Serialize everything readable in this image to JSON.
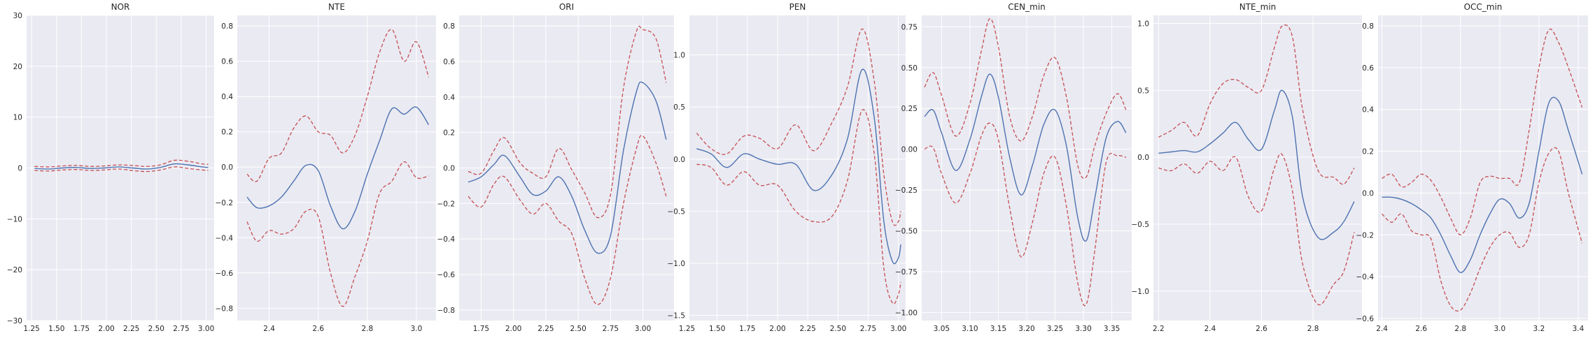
{
  "colors": {
    "mean": "#4c72b0",
    "band": "#c44e52",
    "background": "#eaeaf2",
    "grid": "#ffffff"
  },
  "chart_data": [
    {
      "type": "line",
      "title": "NOR",
      "xlabel": "",
      "ylabel": "",
      "grid": true,
      "xlim": [
        1.2,
        3.08
      ],
      "ylim": [
        -30,
        30
      ],
      "xticks": [
        1.25,
        1.5,
        1.75,
        2.0,
        2.25,
        2.5,
        2.75,
        3.0
      ],
      "xtick_labels": [
        "1.25",
        "1.50",
        "1.75",
        "2.00",
        "2.25",
        "2.50",
        "2.75",
        "3.00"
      ],
      "yticks": [
        -30,
        -20,
        -10,
        0,
        10,
        20,
        30
      ],
      "ytick_labels": [
        "−30",
        "−20",
        "−10",
        "0",
        "10",
        "20",
        "30"
      ],
      "x": [
        1.28,
        1.42,
        1.56,
        1.7,
        1.84,
        1.98,
        2.12,
        2.26,
        2.4,
        2.54,
        2.68,
        2.82,
        2.96,
        3.02
      ],
      "series": [
        {
          "role": "mean",
          "values": [
            -0.1,
            -0.2,
            0.0,
            0.1,
            -0.1,
            0.0,
            0.2,
            0.0,
            -0.2,
            0.1,
            0.8,
            0.6,
            0.2,
            0.1
          ]
        },
        {
          "role": "upper",
          "values": [
            0.3,
            0.2,
            0.4,
            0.5,
            0.3,
            0.4,
            0.6,
            0.5,
            0.3,
            0.6,
            1.5,
            1.3,
            0.8,
            0.7
          ]
        },
        {
          "role": "lower",
          "values": [
            -0.5,
            -0.6,
            -0.4,
            -0.3,
            -0.5,
            -0.4,
            -0.2,
            -0.5,
            -0.7,
            -0.4,
            0.2,
            -0.1,
            -0.4,
            -0.5
          ]
        }
      ]
    },
    {
      "type": "line",
      "title": "NTE",
      "xlabel": "",
      "ylabel": "",
      "grid": true,
      "xlim": [
        2.27,
        3.08
      ],
      "ylim": [
        -0.87,
        0.86
      ],
      "xticks": [
        2.4,
        2.6,
        2.8,
        3.0
      ],
      "xtick_labels": [
        "2.4",
        "2.6",
        "2.8",
        "3.0"
      ],
      "yticks": [
        -0.8,
        -0.6,
        -0.4,
        -0.2,
        0.0,
        0.2,
        0.4,
        0.6,
        0.8
      ],
      "ytick_labels": [
        "−0.8",
        "−0.6",
        "−0.4",
        "−0.2",
        "0.0",
        "0.2",
        "0.4",
        "0.6",
        "0.8"
      ],
      "x": [
        2.31,
        2.35,
        2.4,
        2.45,
        2.5,
        2.55,
        2.6,
        2.65,
        2.7,
        2.75,
        2.8,
        2.85,
        2.9,
        2.95,
        3.0,
        3.05
      ],
      "series": [
        {
          "role": "mean",
          "values": [
            -0.17,
            -0.23,
            -0.22,
            -0.17,
            -0.08,
            0.01,
            -0.02,
            -0.22,
            -0.35,
            -0.25,
            -0.04,
            0.15,
            0.33,
            0.3,
            0.34,
            0.24
          ]
        },
        {
          "role": "upper",
          "values": [
            -0.04,
            -0.08,
            0.05,
            0.08,
            0.22,
            0.29,
            0.2,
            0.18,
            0.08,
            0.18,
            0.4,
            0.65,
            0.78,
            0.6,
            0.71,
            0.51
          ]
        },
        {
          "role": "lower",
          "values": [
            -0.31,
            -0.42,
            -0.36,
            -0.38,
            -0.35,
            -0.25,
            -0.28,
            -0.6,
            -0.79,
            -0.62,
            -0.42,
            -0.15,
            -0.08,
            0.03,
            -0.06,
            -0.05
          ]
        }
      ]
    },
    {
      "type": "line",
      "title": "ORI",
      "xlabel": "",
      "ylabel": "",
      "grid": true,
      "xlim": [
        1.58,
        3.24
      ],
      "ylim": [
        -0.86,
        0.86
      ],
      "xticks": [
        1.75,
        2.0,
        2.25,
        2.5,
        2.75,
        3.0
      ],
      "xtick_labels": [
        "1.75",
        "2.00",
        "2.25",
        "2.50",
        "2.75",
        "3.00"
      ],
      "yticks": [
        -0.8,
        -0.6,
        -0.4,
        -0.2,
        0.0,
        0.2,
        0.4,
        0.6,
        0.8
      ],
      "ytick_labels": [
        "−0.8",
        "−0.6",
        "−0.4",
        "−0.2",
        "0.0",
        "0.2",
        "0.4",
        "0.6",
        "0.8"
      ],
      "x": [
        1.65,
        1.75,
        1.85,
        1.93,
        2.05,
        2.15,
        2.25,
        2.35,
        2.45,
        2.55,
        2.65,
        2.75,
        2.85,
        2.95,
        3.0,
        3.1,
        3.18
      ],
      "series": [
        {
          "role": "mean",
          "values": [
            -0.08,
            -0.05,
            0.02,
            0.07,
            -0.05,
            -0.15,
            -0.13,
            -0.05,
            -0.16,
            -0.35,
            -0.48,
            -0.38,
            0.1,
            0.43,
            0.48,
            0.38,
            0.16
          ]
        },
        {
          "role": "upper",
          "values": [
            -0.02,
            -0.03,
            0.1,
            0.17,
            0.03,
            -0.03,
            -0.05,
            0.11,
            -0.01,
            -0.14,
            -0.28,
            -0.15,
            0.45,
            0.77,
            0.78,
            0.73,
            0.48
          ]
        },
        {
          "role": "lower",
          "values": [
            -0.16,
            -0.22,
            -0.09,
            -0.05,
            -0.18,
            -0.26,
            -0.2,
            -0.3,
            -0.37,
            -0.62,
            -0.77,
            -0.62,
            -0.2,
            0.11,
            0.18,
            0.03,
            -0.16
          ]
        }
      ]
    },
    {
      "type": "line",
      "title": "PEN",
      "xlabel": "",
      "ylabel": "",
      "grid": true,
      "xlim": [
        1.27,
        3.06
      ],
      "ylim": [
        -1.55,
        1.38
      ],
      "xticks": [
        1.25,
        1.5,
        1.75,
        2.0,
        2.25,
        2.5,
        2.75,
        3.0
      ],
      "xtick_labels": [
        "1.25",
        "1.50",
        "1.75",
        "2.00",
        "2.25",
        "2.50",
        "2.75",
        "3.00"
      ],
      "yticks": [
        -1.5,
        -1.0,
        -0.5,
        0.0,
        0.5,
        1.0
      ],
      "ytick_labels": [
        "−1.5",
        "−1.0",
        "−0.5",
        "0.0",
        "0.5",
        "1.0"
      ],
      "x": [
        1.33,
        1.45,
        1.58,
        1.72,
        1.85,
        2.0,
        2.15,
        2.3,
        2.45,
        2.58,
        2.7,
        2.8,
        2.88,
        2.95,
        3.0,
        3.02
      ],
      "series": [
        {
          "role": "mean",
          "values": [
            0.1,
            0.05,
            -0.08,
            0.05,
            0.0,
            -0.05,
            -0.05,
            -0.3,
            -0.15,
            0.2,
            0.86,
            0.4,
            -0.6,
            -0.98,
            -0.95,
            -0.82
          ]
        },
        {
          "role": "upper",
          "values": [
            0.25,
            0.1,
            0.05,
            0.22,
            0.2,
            0.1,
            0.33,
            0.08,
            0.35,
            0.7,
            1.25,
            0.75,
            -0.15,
            -0.6,
            -0.6,
            -0.5
          ]
        },
        {
          "role": "lower",
          "values": [
            -0.05,
            -0.08,
            -0.25,
            -0.12,
            -0.25,
            -0.25,
            -0.5,
            -0.6,
            -0.55,
            -0.2,
            0.47,
            0.05,
            -1.05,
            -1.38,
            -1.3,
            -1.18
          ]
        }
      ]
    },
    {
      "type": "line",
      "title": "CEN_min",
      "xlabel": "",
      "ylabel": "",
      "grid": true,
      "xlim": [
        3.015,
        3.385
      ],
      "ylim": [
        -1.05,
        0.82
      ],
      "xticks": [
        3.05,
        3.1,
        3.15,
        3.2,
        3.25,
        3.3,
        3.35
      ],
      "xtick_labels": [
        "3.05",
        "3.10",
        "3.15",
        "3.20",
        "3.25",
        "3.30",
        "3.35"
      ],
      "yticks": [
        -1.0,
        -0.75,
        -0.5,
        -0.25,
        0.0,
        0.25,
        0.5,
        0.75
      ],
      "ytick_labels": [
        "−1.00",
        "−0.75",
        "−0.50",
        "−0.25",
        "0.00",
        "0.25",
        "0.50",
        "0.75"
      ],
      "x": [
        3.02,
        3.035,
        3.05,
        3.075,
        3.1,
        3.12,
        3.135,
        3.15,
        3.17,
        3.19,
        3.21,
        3.23,
        3.25,
        3.27,
        3.29,
        3.305,
        3.32,
        3.34,
        3.36,
        3.375
      ],
      "series": [
        {
          "role": "mean",
          "values": [
            0.2,
            0.24,
            0.1,
            -0.13,
            0.06,
            0.32,
            0.46,
            0.32,
            -0.05,
            -0.28,
            -0.1,
            0.15,
            0.24,
            0.02,
            -0.42,
            -0.56,
            -0.3,
            0.07,
            0.17,
            0.1
          ]
        },
        {
          "role": "upper",
          "values": [
            0.38,
            0.47,
            0.33,
            0.08,
            0.28,
            0.6,
            0.8,
            0.63,
            0.2,
            0.05,
            0.2,
            0.45,
            0.56,
            0.32,
            -0.1,
            -0.17,
            0.02,
            0.22,
            0.34,
            0.24
          ]
        },
        {
          "role": "lower",
          "values": [
            0.0,
            0.01,
            -0.15,
            -0.33,
            -0.15,
            0.08,
            0.16,
            0.06,
            -0.36,
            -0.66,
            -0.45,
            -0.15,
            -0.05,
            -0.35,
            -0.82,
            -0.95,
            -0.62,
            -0.08,
            -0.04,
            -0.05
          ]
        }
      ]
    },
    {
      "type": "line",
      "title": "NTE_min",
      "xlabel": "",
      "ylabel": "",
      "grid": true,
      "xlim": [
        2.18,
        2.99
      ],
      "ylim": [
        -1.22,
        1.06
      ],
      "xticks": [
        2.2,
        2.4,
        2.6,
        2.8
      ],
      "xtick_labels": [
        "2.2",
        "2.4",
        "2.6",
        "2.8"
      ],
      "yticks": [
        -1.0,
        -0.5,
        0.0,
        0.5,
        1.0
      ],
      "ytick_labels": [
        "−1.0",
        "−0.5",
        "0.0",
        "0.5",
        "1.0"
      ],
      "x": [
        2.2,
        2.25,
        2.3,
        2.35,
        2.4,
        2.45,
        2.5,
        2.55,
        2.6,
        2.65,
        2.68,
        2.72,
        2.76,
        2.82,
        2.88,
        2.92,
        2.96
      ],
      "series": [
        {
          "role": "mean",
          "values": [
            0.03,
            0.04,
            0.05,
            0.04,
            0.1,
            0.18,
            0.26,
            0.13,
            0.06,
            0.35,
            0.5,
            0.3,
            -0.3,
            -0.6,
            -0.56,
            -0.48,
            -0.33
          ]
        },
        {
          "role": "upper",
          "values": [
            0.15,
            0.2,
            0.26,
            0.16,
            0.4,
            0.55,
            0.58,
            0.52,
            0.5,
            0.82,
            0.98,
            0.9,
            0.35,
            -0.1,
            -0.15,
            -0.2,
            -0.08
          ]
        },
        {
          "role": "lower",
          "values": [
            -0.08,
            -0.1,
            -0.05,
            -0.12,
            -0.03,
            -0.1,
            0.0,
            -0.3,
            -0.4,
            -0.08,
            0.02,
            -0.25,
            -0.8,
            -1.1,
            -0.95,
            -0.85,
            -0.56
          ]
        }
      ]
    },
    {
      "type": "line",
      "title": "OCC_min",
      "xlabel": "",
      "ylabel": "",
      "grid": true,
      "xlim": [
        2.38,
        3.45
      ],
      "ylim": [
        -0.61,
        0.85
      ],
      "xticks": [
        2.4,
        2.6,
        2.8,
        3.0,
        3.2,
        3.4
      ],
      "xtick_labels": [
        "2.4",
        "2.6",
        "2.8",
        "3.0",
        "3.2",
        "3.4"
      ],
      "yticks": [
        -0.6,
        -0.4,
        -0.2,
        0.0,
        0.2,
        0.4,
        0.6,
        0.8
      ],
      "ytick_labels": [
        "−0.6",
        "−0.4",
        "−0.2",
        "0.0",
        "0.2",
        "0.4",
        "0.6",
        "0.8"
      ],
      "x": [
        2.4,
        2.45,
        2.5,
        2.55,
        2.6,
        2.65,
        2.7,
        2.75,
        2.8,
        2.85,
        2.9,
        2.95,
        3.0,
        3.05,
        3.1,
        3.15,
        3.2,
        3.25,
        3.3,
        3.35,
        3.42
      ],
      "series": [
        {
          "role": "mean",
          "values": [
            -0.02,
            -0.02,
            -0.03,
            -0.05,
            -0.08,
            -0.12,
            -0.2,
            -0.3,
            -0.38,
            -0.32,
            -0.2,
            -0.1,
            -0.03,
            -0.05,
            -0.12,
            -0.05,
            0.2,
            0.43,
            0.44,
            0.3,
            0.09
          ]
        },
        {
          "role": "upper",
          "values": [
            0.07,
            0.09,
            0.03,
            0.05,
            0.09,
            0.06,
            -0.02,
            -0.12,
            -0.2,
            -0.12,
            0.05,
            0.08,
            0.07,
            0.07,
            0.05,
            0.3,
            0.6,
            0.78,
            0.72,
            0.6,
            0.41
          ]
        },
        {
          "role": "lower",
          "values": [
            -0.1,
            -0.14,
            -0.1,
            -0.18,
            -0.2,
            -0.22,
            -0.42,
            -0.54,
            -0.56,
            -0.48,
            -0.36,
            -0.26,
            -0.2,
            -0.19,
            -0.26,
            -0.2,
            0.05,
            0.19,
            0.2,
            0.0,
            -0.24
          ]
        }
      ]
    }
  ]
}
